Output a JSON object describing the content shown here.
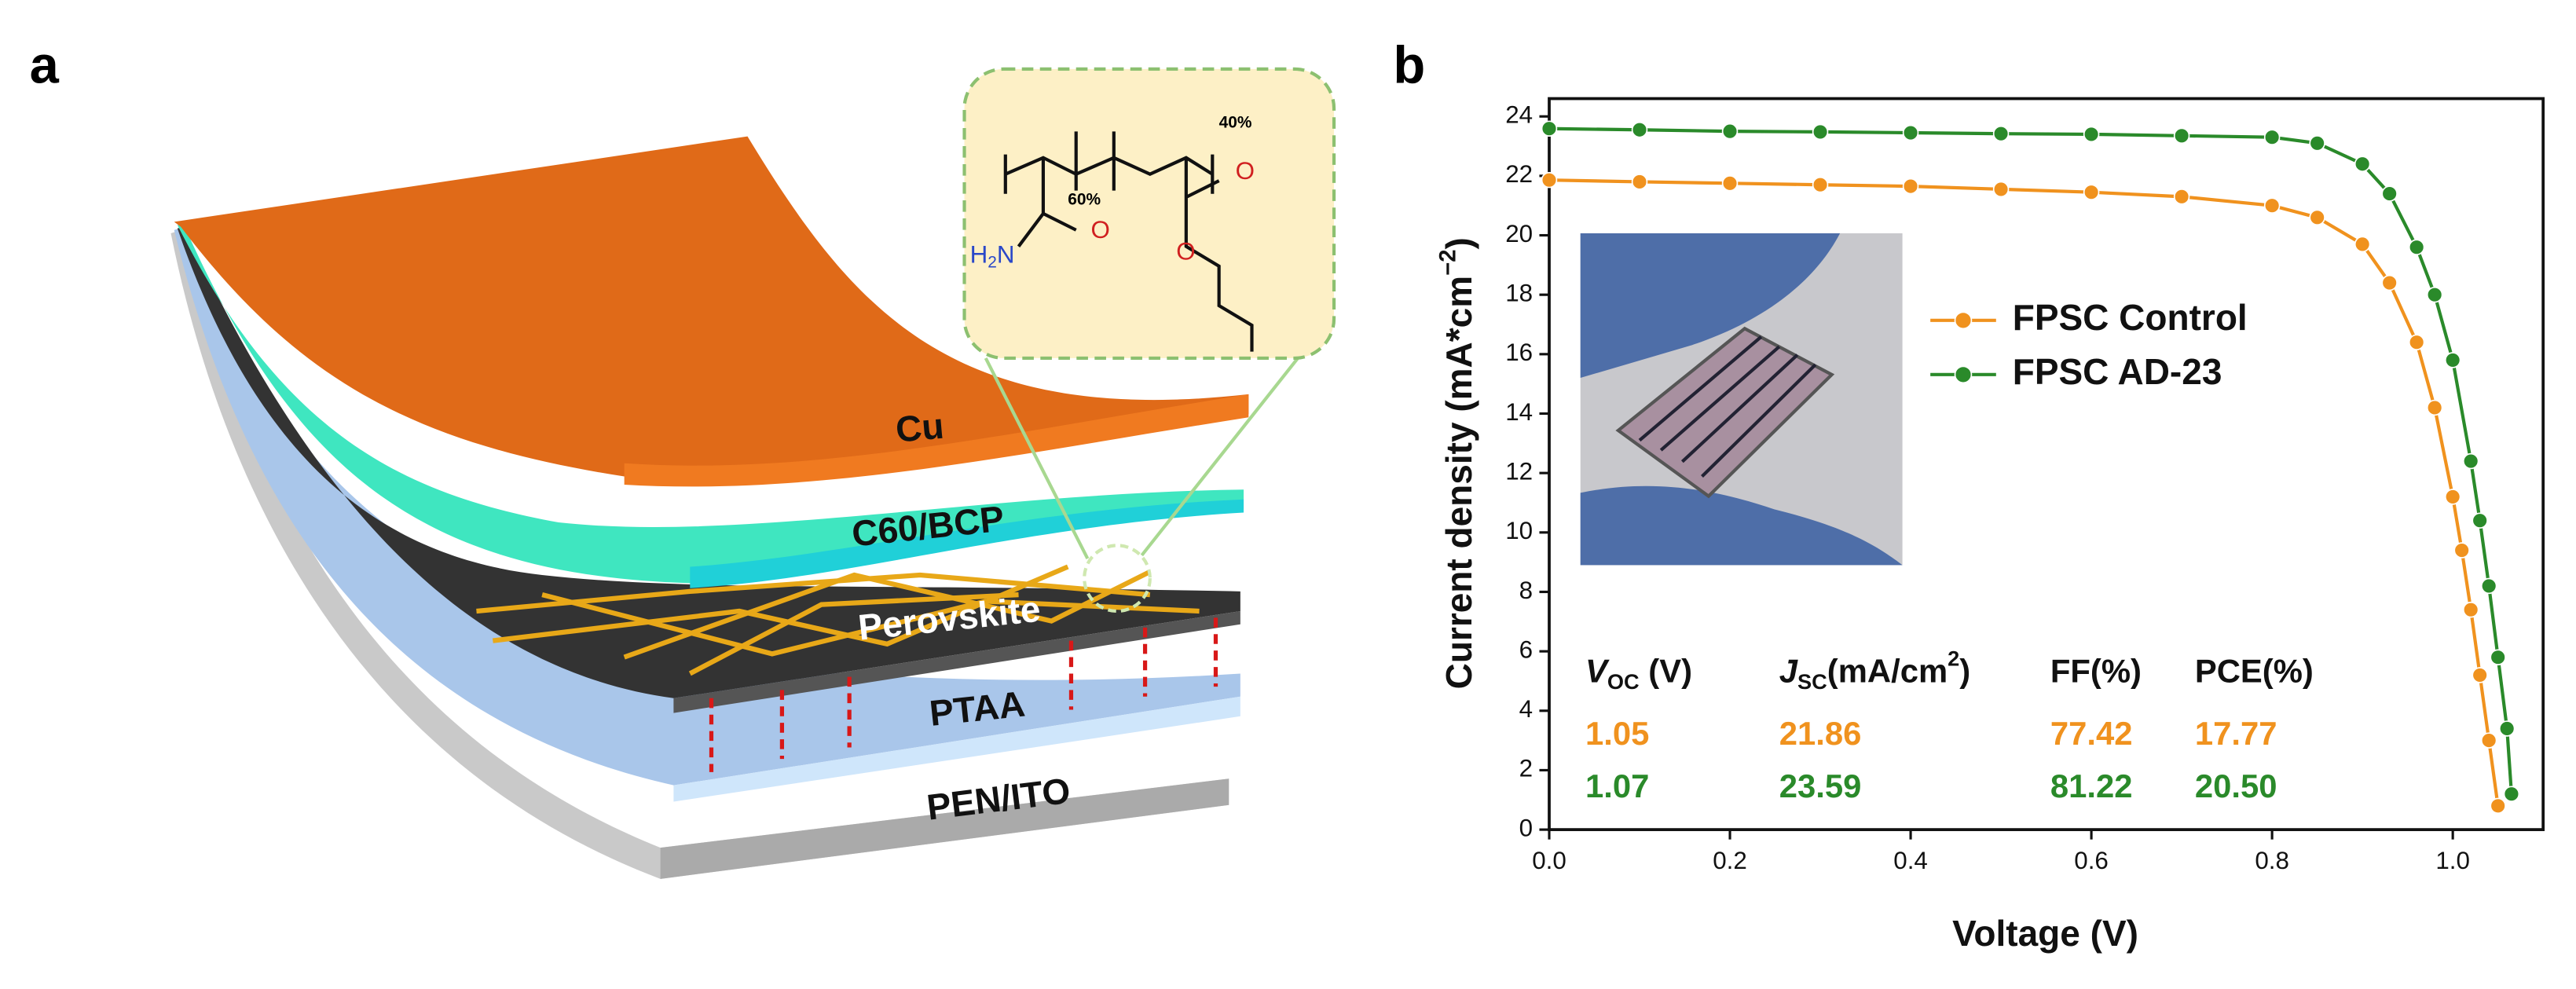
{
  "panels": [
    "a",
    "b"
  ],
  "diagram": {
    "layers": [
      "Cu",
      "C60/BCP",
      "Perovskite",
      "PTAA",
      "PEN/ITO"
    ],
    "molecule": {
      "ratio_a": "60%",
      "ratio_b": "40%",
      "amine": [
        "H",
        "2",
        "N"
      ],
      "oxygen_labels": [
        "O",
        "O",
        "O"
      ]
    }
  },
  "chart_data": {
    "type": "line",
    "xlabel": "Voltage (V)",
    "ylabel": [
      "Current density (mA*cm",
      "−2",
      ")"
    ],
    "xlim": [
      0,
      1.1
    ],
    "ylim": [
      0,
      24.6
    ],
    "xticks": [
      {
        "value": 0,
        "label": "0.0"
      },
      {
        "value": 0.2,
        "label": "0.2"
      },
      {
        "value": 0.4,
        "label": "0.4"
      },
      {
        "value": 0.6,
        "label": "0.6"
      },
      {
        "value": 0.8,
        "label": "0.8"
      },
      {
        "value": 1,
        "label": "1.0"
      }
    ],
    "yticks": [
      0,
      2,
      4,
      6,
      8,
      10,
      12,
      14,
      16,
      18,
      20,
      22,
      24
    ],
    "legend": "upper right",
    "series": [
      {
        "name": "FPSC Control",
        "color": "#f0921e",
        "x": [
          0,
          0.1,
          0.2,
          0.3,
          0.4,
          0.5,
          0.6,
          0.7,
          0.8,
          0.85,
          0.9,
          0.93,
          0.96,
          0.98,
          1.0,
          1.01,
          1.02,
          1.03,
          1.04,
          1.05
        ],
        "values": [
          21.86,
          21.8,
          21.75,
          21.7,
          21.65,
          21.55,
          21.45,
          21.3,
          21.0,
          20.6,
          19.7,
          18.4,
          16.4,
          14.2,
          11.2,
          9.4,
          7.4,
          5.2,
          3.0,
          0.8
        ]
      },
      {
        "name": "FPSC AD-23",
        "color": "#2a8a2a",
        "x": [
          0,
          0.1,
          0.2,
          0.3,
          0.4,
          0.5,
          0.6,
          0.7,
          0.8,
          0.85,
          0.9,
          0.93,
          0.96,
          0.98,
          1.0,
          1.02,
          1.03,
          1.04,
          1.05,
          1.06,
          1.065
        ],
        "values": [
          23.59,
          23.55,
          23.5,
          23.48,
          23.45,
          23.42,
          23.4,
          23.35,
          23.3,
          23.1,
          22.4,
          21.4,
          19.6,
          18.0,
          15.8,
          12.4,
          10.4,
          8.2,
          5.8,
          3.4,
          1.2
        ]
      }
    ],
    "table": {
      "header": [
        [
          "V",
          "OC",
          " (V)"
        ],
        [
          "J",
          "SC",
          "(mA/cm",
          "2",
          ")"
        ],
        [
          "FF(%)"
        ],
        [
          "PCE(%)"
        ]
      ],
      "rows": [
        [
          "1.05",
          "21.86",
          "77.42",
          "17.77"
        ],
        [
          "1.07",
          "23.59",
          "81.22",
          "20.50"
        ]
      ]
    }
  }
}
